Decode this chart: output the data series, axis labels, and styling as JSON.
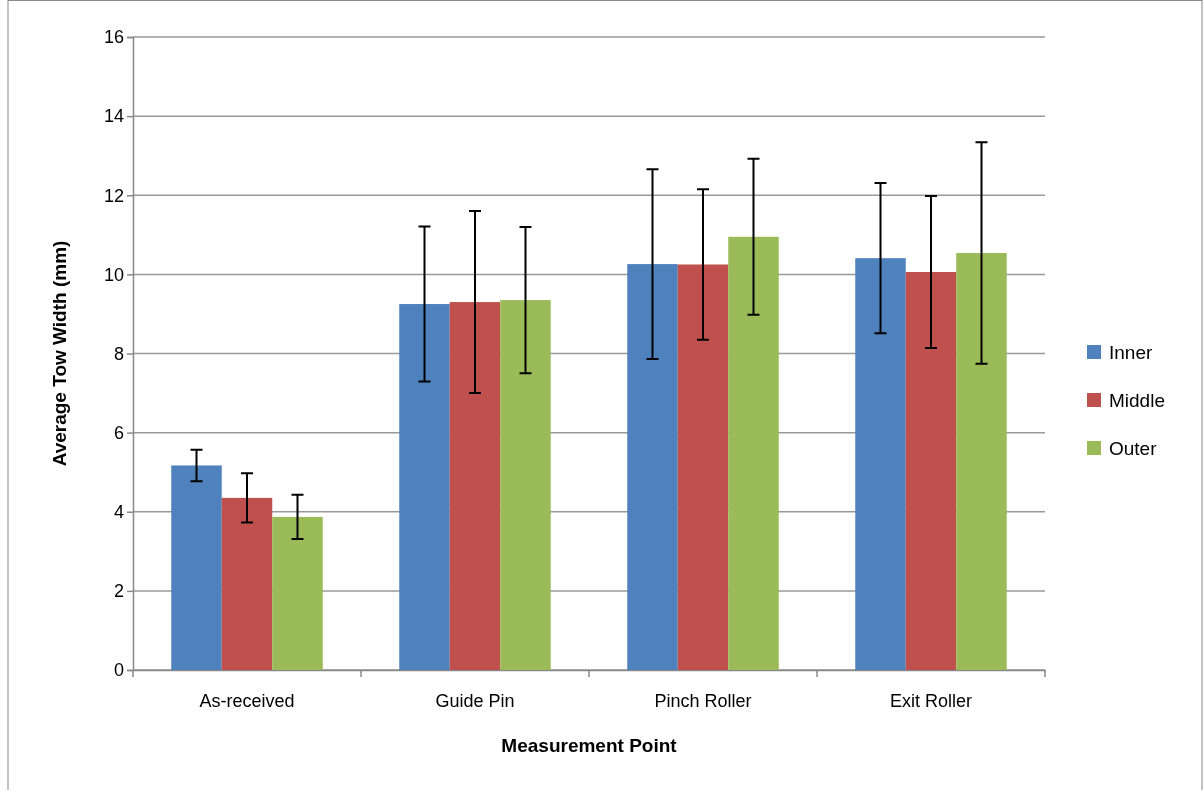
{
  "chart_data": {
    "type": "bar",
    "xlabel": "Measurement Point",
    "ylabel": "Average Tow Width (mm)",
    "categories": [
      "As-received",
      "Guide Pin",
      "Pinch Roller",
      "Exit Roller"
    ],
    "series": [
      {
        "name": "Inner",
        "color": "#4f81bd",
        "values": [
          5.17,
          9.25,
          10.26,
          10.41
        ],
        "errors": [
          0.4,
          1.96,
          2.4,
          1.9
        ]
      },
      {
        "name": "Middle",
        "color": "#c0504d",
        "values": [
          4.35,
          9.3,
          10.25,
          10.06
        ],
        "errors": [
          0.62,
          2.3,
          1.9,
          1.92
        ]
      },
      {
        "name": "Outer",
        "color": "#9bbb59",
        "values": [
          3.87,
          9.35,
          10.95,
          10.54
        ],
        "errors": [
          0.56,
          1.85,
          1.97,
          2.8
        ]
      }
    ],
    "ylim": [
      0,
      16
    ],
    "yticks": [
      0,
      2,
      4,
      6,
      8,
      10,
      12,
      14,
      16
    ],
    "grid": "y",
    "legend": "right"
  }
}
